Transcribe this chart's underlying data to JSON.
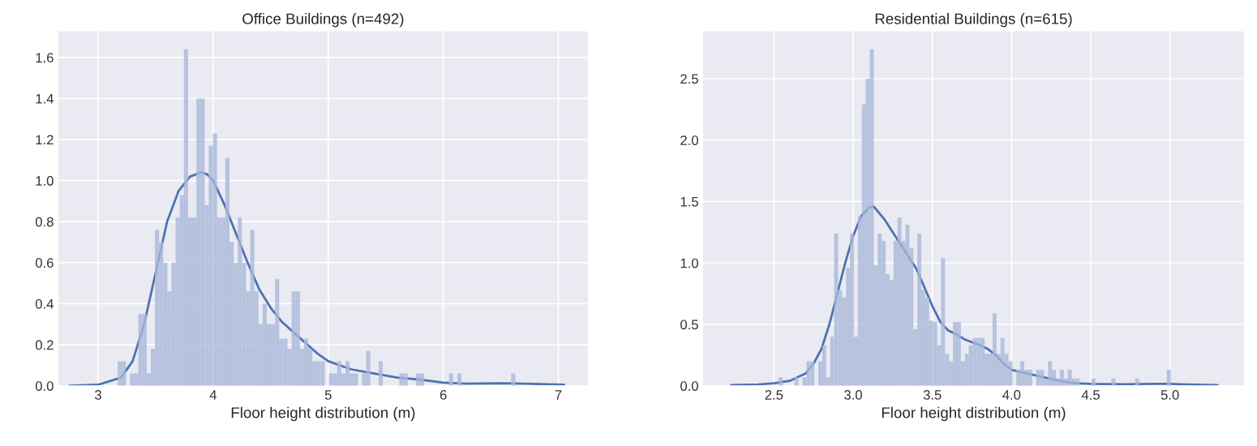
{
  "chart_data": [
    {
      "type": "histogram",
      "title": "Office Buildings (n=492)",
      "xlabel": "Floor height distribution (m)",
      "color": "#a9b8d8",
      "grid": true,
      "bins": [
        3.17,
        3.206,
        3.242,
        3.278,
        3.314,
        3.35,
        3.386,
        3.422,
        3.458,
        3.494,
        3.53,
        3.566,
        3.602,
        3.638,
        3.674,
        3.71,
        3.746,
        3.782,
        3.818,
        3.854,
        3.89,
        3.926,
        3.962,
        3.998,
        4.034,
        4.07,
        4.106,
        4.142,
        4.178,
        4.214,
        4.25,
        4.286,
        4.322,
        4.358,
        4.394,
        4.43,
        4.466,
        4.502,
        4.538,
        4.574,
        4.61,
        4.646,
        4.682,
        4.718,
        4.754,
        4.79,
        4.826,
        4.862,
        4.898,
        4.934,
        4.97,
        5.006,
        5.042,
        5.078,
        5.114,
        5.15,
        5.186,
        5.222,
        5.258,
        5.294,
        5.33,
        5.366,
        5.402,
        5.438,
        5.474,
        5.51,
        5.546,
        5.582,
        5.618,
        5.654,
        5.69,
        5.726,
        5.762,
        5.798,
        5.834,
        5.87,
        5.906,
        5.942,
        5.978,
        6.014,
        6.05,
        6.086,
        6.122,
        6.158,
        6.194,
        6.23,
        6.266,
        6.302,
        6.338,
        6.374,
        6.41,
        6.446,
        6.482,
        6.518,
        6.554,
        6.59,
        6.626,
        6.662
      ],
      "values": [
        0.12,
        0.12,
        0,
        0.06,
        0.06,
        0.35,
        0.35,
        0.06,
        0.18,
        0.76,
        0.7,
        0.6,
        0.46,
        0.6,
        0.82,
        0.93,
        1.64,
        0.82,
        0.82,
        1.4,
        1.4,
        0.88,
        1.17,
        1.23,
        0.82,
        0.82,
        1.11,
        0.7,
        0.6,
        0.82,
        0.6,
        0.46,
        0.76,
        0.46,
        0.3,
        0.4,
        0.3,
        0.3,
        0.52,
        0.23,
        0.23,
        0.18,
        0.46,
        0.46,
        0.18,
        0.23,
        0.18,
        0.12,
        0.12,
        0.12,
        0,
        0.06,
        0.06,
        0.12,
        0.06,
        0.12,
        0.06,
        0.06,
        0,
        0.06,
        0.17,
        0,
        0,
        0.12,
        0,
        0,
        0,
        0,
        0.06,
        0.06,
        0,
        0,
        0.06,
        0.06,
        0,
        0,
        0,
        0,
        0,
        0,
        0.06,
        0,
        0.06,
        0,
        0,
        0,
        0,
        0,
        0,
        0,
        0,
        0,
        0,
        0,
        0,
        0.06,
        0
      ],
      "series": [
        {
          "type": "line",
          "color": "#4c72b0",
          "x": [
            2.75,
            3.0,
            3.2,
            3.3,
            3.4,
            3.5,
            3.6,
            3.7,
            3.8,
            3.9,
            3.95,
            4.0,
            4.1,
            4.2,
            4.3,
            4.4,
            4.5,
            4.6,
            4.7,
            4.8,
            4.9,
            5.0,
            5.2,
            5.4,
            5.6,
            5.8,
            6.0,
            6.2,
            6.5,
            6.7,
            7.05
          ],
          "values": [
            0.0,
            0.005,
            0.04,
            0.12,
            0.3,
            0.55,
            0.8,
            0.95,
            1.02,
            1.04,
            1.03,
            1.0,
            0.88,
            0.74,
            0.6,
            0.47,
            0.38,
            0.31,
            0.26,
            0.21,
            0.16,
            0.12,
            0.08,
            0.06,
            0.04,
            0.03,
            0.015,
            0.01,
            0.012,
            0.01,
            0.005
          ]
        }
      ],
      "xlim": [
        2.65,
        7.26
      ],
      "ylim": [
        0,
        1.73
      ],
      "xticks": [
        3,
        4,
        5,
        6,
        7
      ],
      "yticks": [
        {
          "value": 0,
          "label": "0.0"
        },
        {
          "value": 0.2,
          "label": "0.2"
        },
        {
          "value": 0.4,
          "label": "0.4"
        },
        {
          "value": 0.6,
          "label": "0.6"
        },
        {
          "value": 0.8,
          "label": "0.8"
        },
        {
          "value": 1.0,
          "label": "1.0"
        },
        {
          "value": 1.2,
          "label": "1.2"
        },
        {
          "value": 1.4,
          "label": "1.4"
        },
        {
          "value": 1.6,
          "label": "1.6"
        }
      ]
    },
    {
      "type": "histogram",
      "title": "Residential Buildings (n=615)",
      "xlabel": "Floor height distribution (m)",
      "color": "#a9b8d8",
      "grid": true,
      "bins": [
        2.53,
        2.555,
        2.58,
        2.605,
        2.63,
        2.655,
        2.68,
        2.705,
        2.73,
        2.755,
        2.78,
        2.805,
        2.83,
        2.855,
        2.88,
        2.905,
        2.93,
        2.955,
        2.98,
        3.005,
        3.03,
        3.055,
        3.08,
        3.105,
        3.13,
        3.155,
        3.18,
        3.205,
        3.23,
        3.255,
        3.28,
        3.305,
        3.33,
        3.355,
        3.38,
        3.405,
        3.43,
        3.455,
        3.48,
        3.505,
        3.53,
        3.555,
        3.58,
        3.605,
        3.63,
        3.655,
        3.68,
        3.705,
        3.73,
        3.755,
        3.78,
        3.805,
        3.83,
        3.855,
        3.88,
        3.905,
        3.93,
        3.955,
        3.98,
        4.005,
        4.03,
        4.055,
        4.08,
        4.105,
        4.13,
        4.155,
        4.18,
        4.205,
        4.23,
        4.255,
        4.28,
        4.305,
        4.33,
        4.355,
        4.38,
        4.405,
        4.43,
        4.455,
        4.48,
        4.505,
        4.53,
        4.555,
        4.58,
        4.605,
        4.63,
        4.655,
        4.68,
        4.705,
        4.73,
        4.755,
        4.78,
        4.805,
        4.83,
        4.855,
        4.88,
        4.905,
        4.93,
        4.955,
        4.98,
        5.005
      ],
      "values": [
        0.07,
        0,
        0,
        0,
        0.07,
        0,
        0.07,
        0.2,
        0.2,
        0,
        0.2,
        0.33,
        0.07,
        0.4,
        1.24,
        0.78,
        0.72,
        0.96,
        1.24,
        0.4,
        1.38,
        2.29,
        2.5,
        2.74,
        0.98,
        1.24,
        1.18,
        0.91,
        0.86,
        1.18,
        1.37,
        1.18,
        1.31,
        1.12,
        0.46,
        1.24,
        0.78,
        0.72,
        0.53,
        0.52,
        0.33,
        1.04,
        0.26,
        0.2,
        0.52,
        0.52,
        0.2,
        0.26,
        0.33,
        0.39,
        0.39,
        0.39,
        0.26,
        0.26,
        0.59,
        0.26,
        0.39,
        0.26,
        0.2,
        0,
        0.13,
        0.2,
        0.13,
        0.13,
        0,
        0.13,
        0.13,
        0.06,
        0.2,
        0.13,
        0.06,
        0.13,
        0.06,
        0.13,
        0.06,
        0.06,
        0,
        0,
        0,
        0.06,
        0,
        0,
        0,
        0,
        0.06,
        0,
        0,
        0,
        0,
        0,
        0.06,
        0,
        0,
        0,
        0,
        0,
        0,
        0,
        0.13
      ],
      "series": [
        {
          "type": "line",
          "color": "#4c72b0",
          "x": [
            2.23,
            2.4,
            2.5,
            2.6,
            2.7,
            2.75,
            2.8,
            2.85,
            2.9,
            2.95,
            3.0,
            3.05,
            3.1,
            3.13,
            3.2,
            3.3,
            3.4,
            3.45,
            3.5,
            3.55,
            3.6,
            3.65,
            3.7,
            3.8,
            3.85,
            3.9,
            3.95,
            4.0,
            4.1,
            4.2,
            4.3,
            4.4,
            4.5,
            4.7,
            4.9,
            5.0,
            5.1,
            5.3
          ],
          "values": [
            0.005,
            0.01,
            0.02,
            0.04,
            0.1,
            0.18,
            0.3,
            0.5,
            0.75,
            1.0,
            1.22,
            1.38,
            1.45,
            1.46,
            1.35,
            1.15,
            0.95,
            0.8,
            0.65,
            0.52,
            0.45,
            0.42,
            0.38,
            0.33,
            0.3,
            0.25,
            0.18,
            0.13,
            0.1,
            0.07,
            0.04,
            0.02,
            0.015,
            0.012,
            0.015,
            0.015,
            0.01,
            0.005
          ]
        }
      ],
      "xlim": [
        2.05,
        5.47
      ],
      "ylim": [
        0,
        2.89
      ],
      "xticks": [
        {
          "value": 2.5,
          "label": "2.5"
        },
        {
          "value": 3.0,
          "label": "3.0"
        },
        {
          "value": 3.5,
          "label": "3.5"
        },
        {
          "value": 4.0,
          "label": "4.0"
        },
        {
          "value": 4.5,
          "label": "4.5"
        },
        {
          "value": 5.0,
          "label": "5.0"
        }
      ],
      "yticks": [
        {
          "value": 0,
          "label": "0.0"
        },
        {
          "value": 0.5,
          "label": "0.5"
        },
        {
          "value": 1.0,
          "label": "1.0"
        },
        {
          "value": 1.5,
          "label": "1.5"
        },
        {
          "value": 2.0,
          "label": "2.0"
        },
        {
          "value": 2.5,
          "label": "2.5"
        }
      ]
    }
  ]
}
